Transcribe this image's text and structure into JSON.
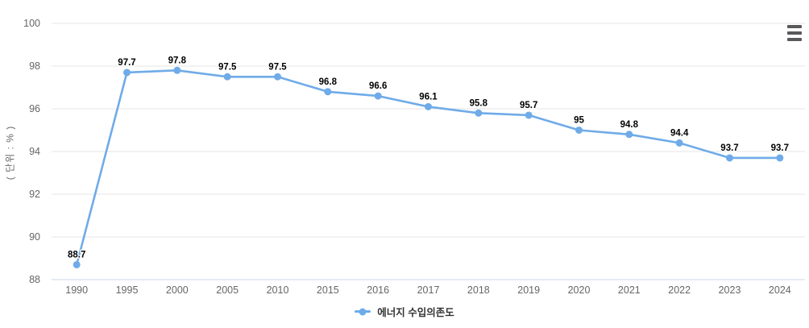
{
  "chart": {
    "unit_label": "( 단위 : % )",
    "legend": {
      "label": "에너지 수입의존도"
    },
    "colors": {
      "series": "#6fabe8",
      "grid": "#e6e6e6",
      "axis_line": "#ccd6eb",
      "tick_label": "#666666",
      "data_label": "#000000",
      "legend_text": "#333333",
      "menu_icon": "#59595b",
      "background": "#ffffff"
    }
  },
  "chart_data": {
    "type": "line",
    "title": "",
    "xlabel": "",
    "ylabel": "( 단위 : % )",
    "categories": [
      "1990",
      "1995",
      "2000",
      "2005",
      "2010",
      "2015",
      "2016",
      "2017",
      "2018",
      "2019",
      "2020",
      "2021",
      "2022",
      "2023",
      "2024"
    ],
    "series": [
      {
        "name": "에너지 수입의존도",
        "values": [
          88.7,
          97.7,
          97.8,
          97.5,
          97.5,
          96.8,
          96.6,
          96.1,
          95.8,
          95.7,
          95,
          94.8,
          94.4,
          93.7,
          93.7
        ],
        "data_labels": [
          "88.7",
          "97.7",
          "97.8",
          "97.5",
          "97.5",
          "96.8",
          "96.6",
          "96.1",
          "95.8",
          "95.7",
          "95",
          "94.8",
          "94.4",
          "93.7",
          "93.7"
        ]
      }
    ],
    "ylim": [
      88,
      100
    ],
    "yticks": [
      88,
      90,
      92,
      94,
      96,
      98,
      100
    ],
    "grid": true,
    "legend_position": "bottom",
    "marker": "circle"
  }
}
